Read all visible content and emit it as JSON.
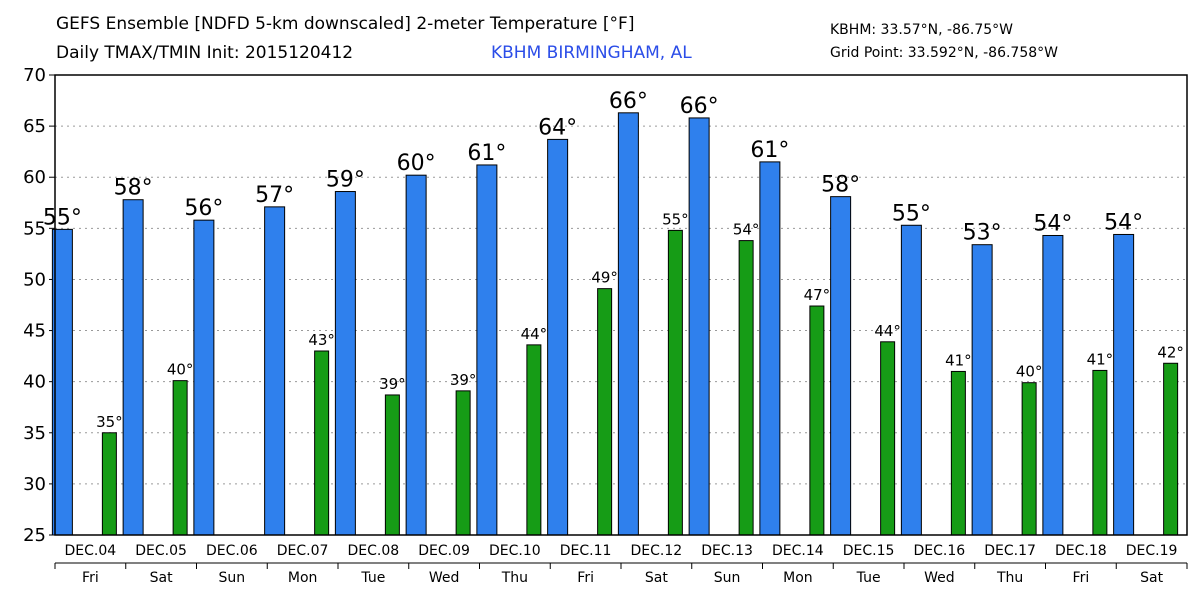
{
  "header": {
    "title_line1": "GEFS Ensemble [NDFD 5-km downscaled] 2-meter Temperature [°F]",
    "title_line2": "Daily TMAX/TMIN Init: 2015120412",
    "station": "KBHM BIRMINGHAM, AL",
    "coord_station": "KBHM: 33.57°N, -86.75°W",
    "coord_grid": "Grid Point: 33.592°N, -86.758°W"
  },
  "chart_data": {
    "type": "bar",
    "title": "GEFS Ensemble [NDFD 5-km downscaled] 2-meter Temperature [°F]",
    "categories": [
      "DEC.04",
      "DEC.05",
      "DEC.06",
      "DEC.07",
      "DEC.08",
      "DEC.09",
      "DEC.10",
      "DEC.11",
      "DEC.12",
      "DEC.13",
      "DEC.14",
      "DEC.15",
      "DEC.16",
      "DEC.17",
      "DEC.18",
      "DEC.19"
    ],
    "weekdays": [
      "Fri",
      "Sat",
      "Sun",
      "Mon",
      "Tue",
      "Wed",
      "Thu",
      "Fri",
      "Sat",
      "Sun",
      "Mon",
      "Tue",
      "Wed",
      "Thu",
      "Fri",
      "Sat"
    ],
    "series": [
      {
        "name": "TMAX",
        "color": "#2f80ed",
        "values": [
          54.9,
          57.8,
          55.8,
          57.1,
          58.6,
          60.2,
          61.2,
          63.7,
          66.3,
          65.8,
          61.5,
          58.1,
          55.3,
          53.4,
          54.3,
          54.4
        ],
        "labels": [
          "55°",
          "58°",
          "56°",
          "57°",
          "59°",
          "60°",
          "61°",
          "64°",
          "66°",
          "66°",
          "61°",
          "58°",
          "55°",
          "53°",
          "54°",
          "54°"
        ]
      },
      {
        "name": "TMIN",
        "color": "#169c16",
        "values": [
          35.0,
          40.1,
          null,
          43.0,
          38.7,
          39.1,
          43.6,
          49.1,
          54.8,
          53.8,
          47.4,
          43.9,
          41.0,
          39.9,
          41.1,
          41.8
        ],
        "labels": [
          "35°",
          "40°",
          "",
          "43°",
          "39°",
          "39°",
          "44°",
          "49°",
          "55°",
          "54°",
          "47°",
          "44°",
          "41°",
          "40°",
          "41°",
          "42°"
        ]
      }
    ],
    "ylim": [
      25,
      70
    ],
    "yticks": [
      25,
      30,
      35,
      40,
      45,
      50,
      55,
      60,
      65,
      70
    ],
    "ytick_labels": [
      "25",
      "30",
      "35",
      "40",
      "45",
      "50",
      "55",
      "60",
      "65",
      "70"
    ],
    "grid": true
  }
}
